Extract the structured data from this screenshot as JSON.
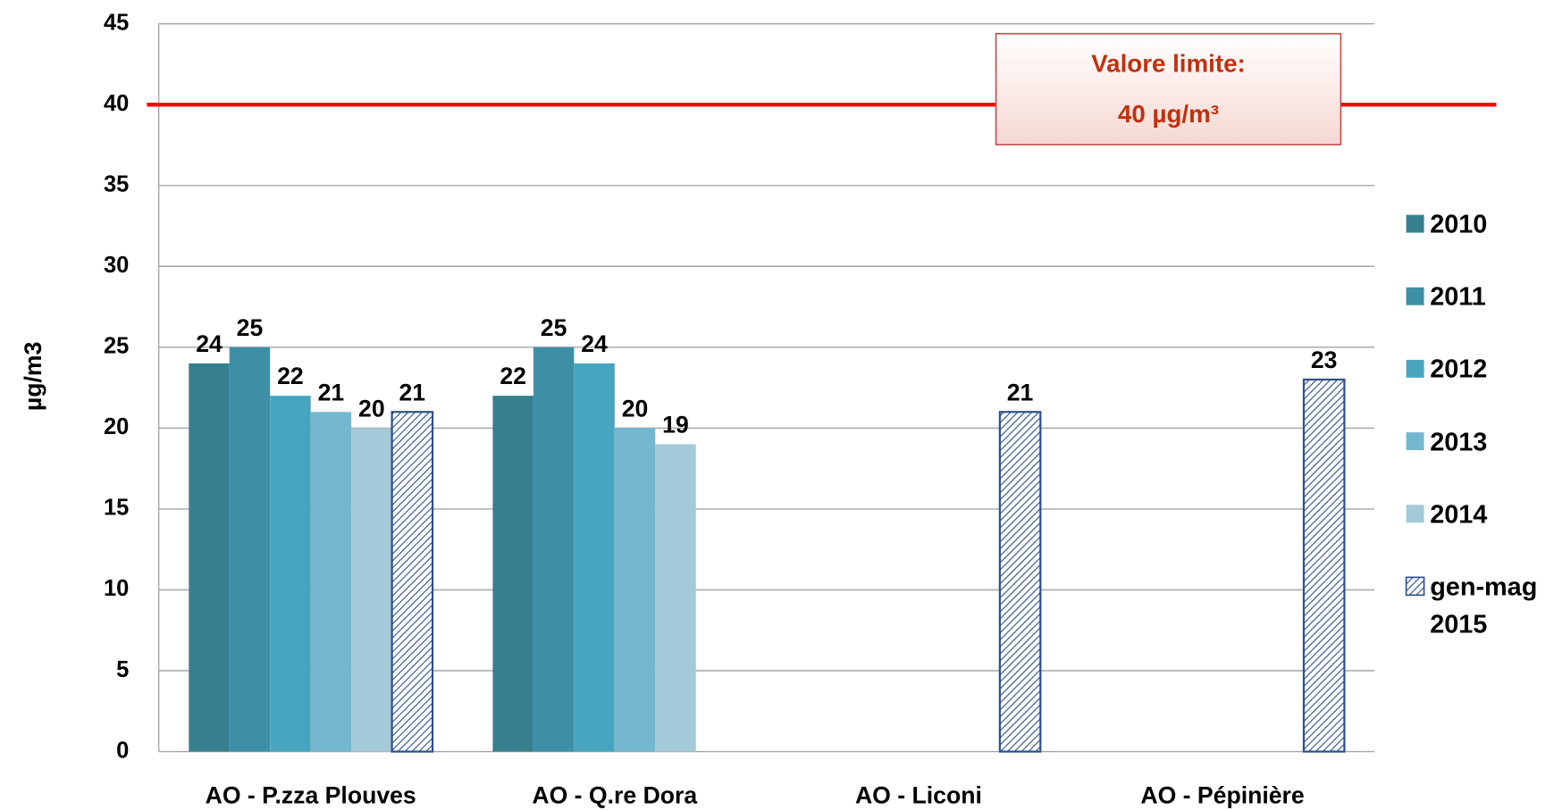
{
  "chart_data": {
    "type": "bar",
    "y_label": "µg/m3",
    "categories": [
      "AO - P.zza Plouves",
      "AO - Q.re Dora",
      "AO - Liconi",
      "AO - Pépinière"
    ],
    "series": [
      {
        "name": "2010",
        "color": "#367f8f",
        "values": [
          24,
          22,
          null,
          null
        ]
      },
      {
        "name": "2011",
        "color": "#3d8fa6",
        "values": [
          25,
          25,
          null,
          null
        ]
      },
      {
        "name": "2012",
        "color": "#47a5bf",
        "values": [
          22,
          24,
          null,
          null
        ]
      },
      {
        "name": "2013",
        "color": "#74b8cf",
        "values": [
          21,
          20,
          null,
          null
        ]
      },
      {
        "name": "2014",
        "color": "#a4c9d9",
        "values": [
          20,
          19,
          null,
          null
        ]
      },
      {
        "name": "gen-mag 2015",
        "color": "#2f4f8a",
        "hatch": true,
        "values": [
          21,
          null,
          21,
          23
        ]
      }
    ],
    "ylim": [
      0,
      45
    ],
    "yticks": [
      0,
      5,
      10,
      15,
      20,
      25,
      30,
      35,
      40,
      45
    ],
    "grid": true,
    "legend": "right",
    "limit": {
      "value": 40,
      "color": "#ff0000",
      "title": "Valore limite:",
      "label": "40 µg/m³"
    }
  }
}
